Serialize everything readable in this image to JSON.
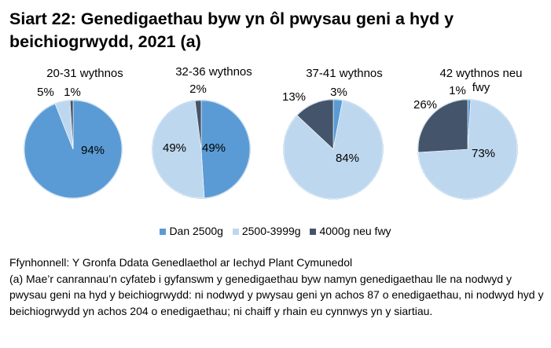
{
  "title": "Siart 22: Genedigaethau byw yn ôl pwysau geni a hyd y beichiogrwydd, 2021 (a)",
  "chart_data": {
    "type": "pie",
    "legend_position": "bottom",
    "legend": [
      {
        "name": "Dan 2500g",
        "color": "#5B9BD5"
      },
      {
        "name": "2500-3999g",
        "color": "#BDD7EE"
      },
      {
        "name": "4000g neu fwy",
        "color": "#44546A"
      }
    ],
    "pies": [
      {
        "title": [
          "20-31 wythnos"
        ],
        "values": [
          94,
          5,
          1
        ],
        "labels": [
          "94%",
          "5%",
          "1%"
        ]
      },
      {
        "title": [
          "32-36 wythnos"
        ],
        "values": [
          49,
          49,
          2
        ],
        "labels": [
          "49%",
          "49%",
          "2%"
        ]
      },
      {
        "title": [
          "37-41 wythnos"
        ],
        "values": [
          3,
          84,
          13
        ],
        "labels": [
          "3%",
          "84%",
          "13%"
        ]
      },
      {
        "title": [
          "42 wythnos neu",
          "fwy"
        ],
        "values": [
          1,
          73,
          26
        ],
        "labels": [
          "1%",
          "73%",
          "26%"
        ]
      }
    ]
  },
  "notes": {
    "source": "Ffynhonnell: Y Gronfa Ddata Genedlaethol ar Iechyd Plant Cymunedol",
    "footnote": "(a) Mae’r canrannau’n cyfateb i gyfanswm y genedigaethau byw namyn genedigaethau lle na nodwyd y pwysau geni na hyd y beichiogrwydd: ni nodwyd y pwysau geni yn achos 87 o enedigaethau, ni nodwyd hyd y beichiogrwydd yn achos 204 o enedigaethau; ni chaiff y rhain eu cynnwys yn y siartiau."
  }
}
